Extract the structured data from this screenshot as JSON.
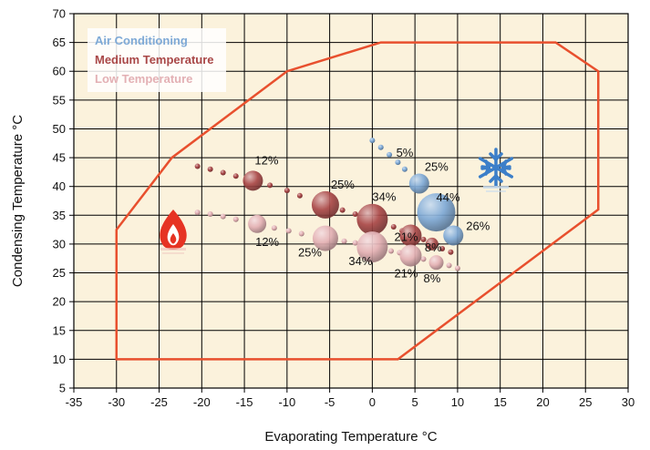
{
  "chart_data": {
    "type": "scatter",
    "xlabel": "Evaporating Temperature °C",
    "ylabel": "Condensing Temperature °C",
    "xlim": [
      -35,
      30
    ],
    "ylim": [
      5,
      70
    ],
    "xticks": [
      -35,
      -30,
      -25,
      -20,
      -15,
      -10,
      -5,
      0,
      5,
      10,
      15,
      20,
      25,
      30
    ],
    "yticks": [
      5,
      10,
      15,
      20,
      25,
      30,
      35,
      40,
      45,
      50,
      55,
      60,
      65,
      70
    ],
    "grid": true,
    "legend_placement": "top-left",
    "colors": {
      "plot_background": "#fbf2dc",
      "envelope": "#e8502e",
      "air_conditioning": "#7ea9d6",
      "medium_temperature": "#a94747",
      "low_temperature": "#e3b0b4"
    },
    "envelope": [
      [
        -30,
        10
      ],
      [
        -30,
        32.5
      ],
      [
        -23.5,
        45
      ],
      [
        -10,
        60
      ],
      [
        1,
        65
      ],
      [
        21.5,
        65
      ],
      [
        26.5,
        60
      ],
      [
        26.5,
        36
      ],
      [
        3,
        10
      ]
    ],
    "series": [
      {
        "name": "Air Conditioning",
        "color": "#7ea9d6",
        "points": [
          {
            "x": 5.5,
            "y": 40.5,
            "label": "25%",
            "size": 11
          },
          {
            "x": 7.5,
            "y": 35.5,
            "label": "44%",
            "size": 21
          },
          {
            "x": 9.5,
            "y": 31.5,
            "label": "26%",
            "size": 11
          }
        ],
        "extra_labels": [
          {
            "text": "5%",
            "x": 2.8,
            "y": 45.2
          }
        ],
        "trail": [
          [
            0,
            48
          ],
          [
            1,
            46.8
          ],
          [
            2,
            45.5
          ],
          [
            3,
            44.2
          ],
          [
            3.8,
            43
          ]
        ]
      },
      {
        "name": "Medium Temperature",
        "color": "#a94747",
        "points": [
          {
            "x": -14,
            "y": 41,
            "label": "12%",
            "size": 11
          },
          {
            "x": -5.5,
            "y": 36.8,
            "label": "25%",
            "size": 15
          },
          {
            "x": 0,
            "y": 34.3,
            "label": "34%",
            "size": 17
          },
          {
            "x": 4.5,
            "y": 31.5,
            "label": "21%",
            "size": 12
          },
          {
            "x": 7,
            "y": 30,
            "label": "8%",
            "size": 7
          }
        ],
        "trail": [
          [
            -20.5,
            43.5
          ],
          [
            -19,
            43
          ],
          [
            -17.5,
            42.4
          ],
          [
            -16,
            41.8
          ],
          [
            -12,
            40.2
          ],
          [
            -10,
            39.3
          ],
          [
            -8.5,
            38.4
          ],
          [
            -3.5,
            35.9
          ],
          [
            -2,
            35.2
          ],
          [
            2.5,
            33
          ],
          [
            3.5,
            32.3
          ],
          [
            6,
            30.8
          ],
          [
            8.2,
            29.2
          ],
          [
            9.2,
            28.6
          ]
        ]
      },
      {
        "name": "Low Temperature",
        "color": "#e3b0b4",
        "points": [
          {
            "x": -13.5,
            "y": 33.5,
            "label": "12%",
            "size": 10
          },
          {
            "x": -5.5,
            "y": 31,
            "label": "25%",
            "size": 14
          },
          {
            "x": 0,
            "y": 29.5,
            "label": "34%",
            "size": 17
          },
          {
            "x": 4.5,
            "y": 28,
            "label": "21%",
            "size": 12
          },
          {
            "x": 7.5,
            "y": 26.8,
            "label": "8%",
            "size": 8
          }
        ],
        "trail": [
          [
            -20.5,
            35.5
          ],
          [
            -19,
            35.2
          ],
          [
            -17.5,
            34.8
          ],
          [
            -16,
            34.3
          ],
          [
            -11.5,
            32.8
          ],
          [
            -9.8,
            32.3
          ],
          [
            -8.3,
            31.8
          ],
          [
            -3.3,
            30.5
          ],
          [
            -2,
            30.2
          ],
          [
            2.2,
            28.8
          ],
          [
            3.2,
            28.5
          ],
          [
            6,
            27.4
          ],
          [
            9,
            26.3
          ],
          [
            10,
            25.8
          ]
        ]
      }
    ]
  },
  "legend": {
    "items": [
      {
        "label": "Air Conditioning",
        "color": "#7ea9d6"
      },
      {
        "label": "Medium Temperature",
        "color": "#a94747"
      },
      {
        "label": "Low Temperature",
        "color": "#e3b0b4"
      }
    ]
  },
  "icons": {
    "heating": "flame-icon",
    "cooling": "snowflake-icon"
  }
}
